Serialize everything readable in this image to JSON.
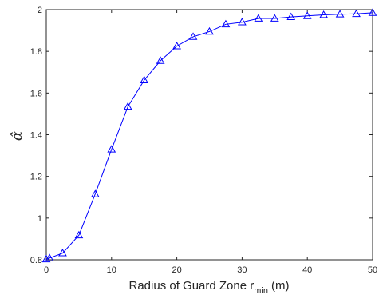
{
  "chart_data": {
    "type": "line",
    "title": "",
    "xlabel": "Radius of Guard Zone r",
    "xlabel_subscript": "min",
    "xlabel_unit": "(m)",
    "ylabel": "α̂",
    "xlim": [
      0,
      50
    ],
    "ylim": [
      0.8,
      2.0
    ],
    "x_ticks": [
      0,
      10,
      20,
      30,
      40,
      50
    ],
    "x_tick_labels": [
      "0",
      "10",
      "20",
      "30",
      "40",
      "50"
    ],
    "y_ticks": [
      0.8,
      1.0,
      1.2,
      1.4,
      1.6,
      1.8,
      2.0
    ],
    "y_tick_labels": [
      "0.8",
      "1",
      "1.2",
      "1.4",
      "1.6",
      "1.8",
      "2"
    ],
    "grid": false,
    "marker": "triangle",
    "color": "#0000ff",
    "series": [
      {
        "x": [
          0,
          0.5,
          2.5,
          5,
          7.5,
          10,
          12.5,
          15,
          17.5,
          20,
          22.5,
          25,
          27.5,
          30,
          32.5,
          35,
          37.5,
          40,
          42.5,
          45,
          47.5,
          50
        ],
        "values": [
          0.803,
          0.808,
          0.832,
          0.918,
          1.115,
          1.33,
          1.535,
          1.662,
          1.755,
          1.825,
          1.87,
          1.895,
          1.93,
          1.94,
          1.958,
          1.958,
          1.965,
          1.97,
          1.975,
          1.978,
          1.98,
          1.985
        ]
      }
    ]
  }
}
